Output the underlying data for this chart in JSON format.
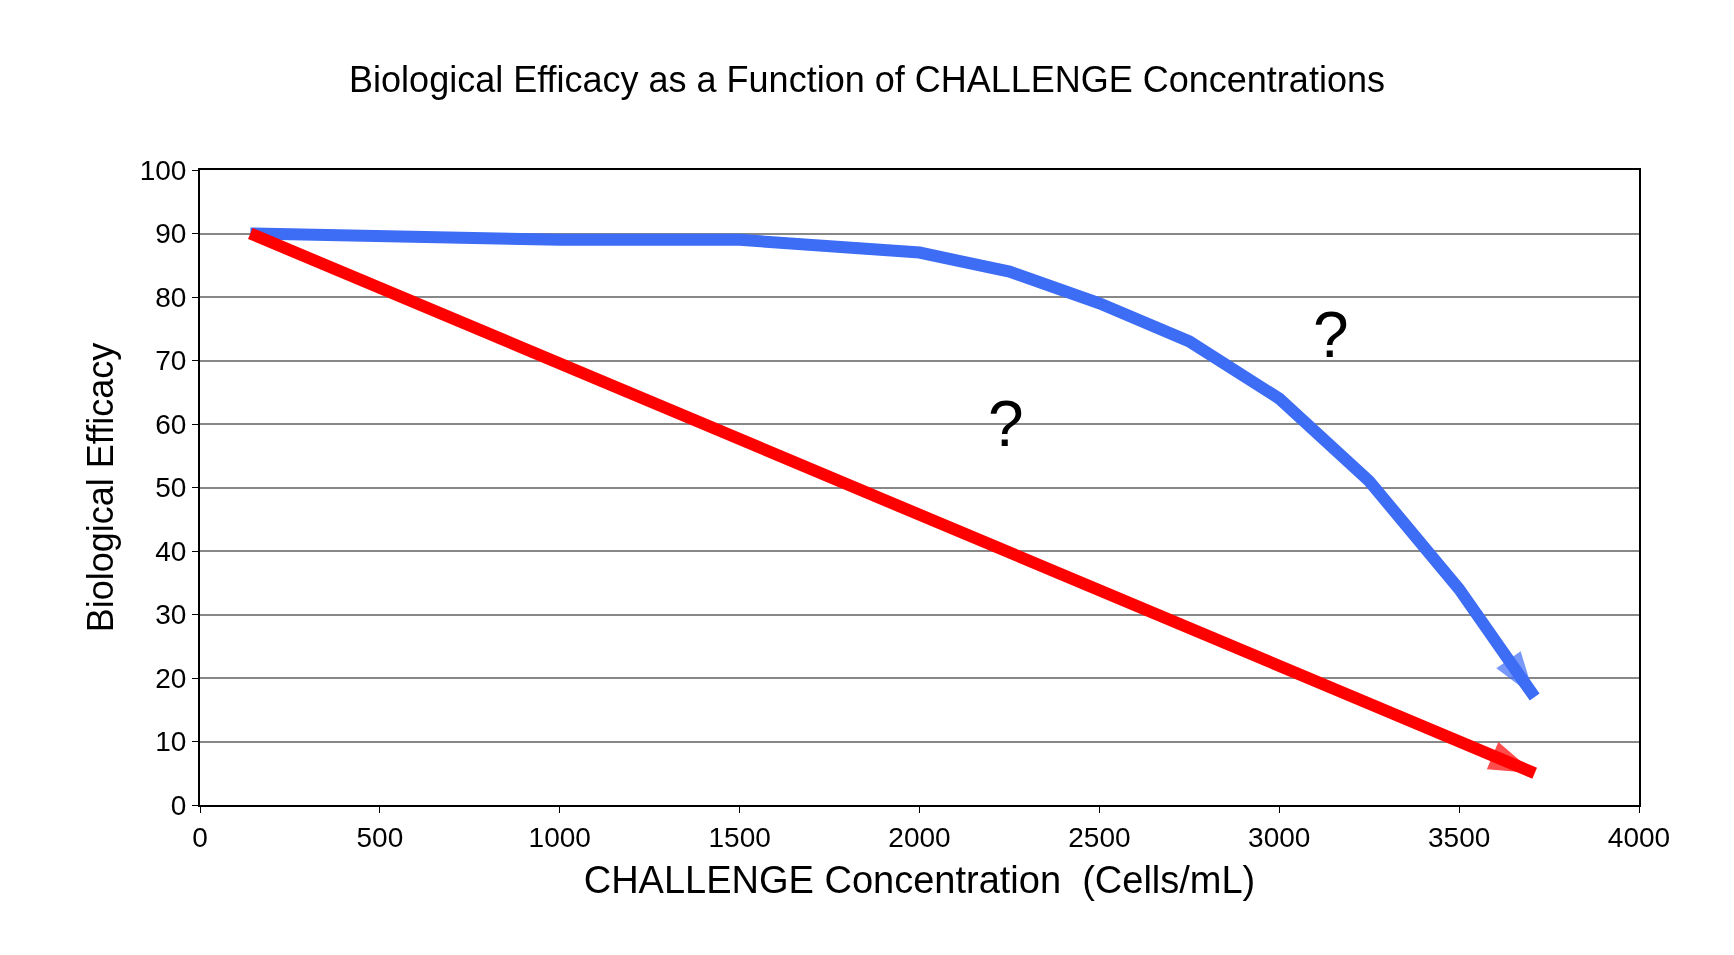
{
  "chart_data": {
    "type": "line",
    "title": "Biological Efficacy as a Function of CHALLENGE Concentrations",
    "xlabel": "CHALLENGE Concentration  (Cells/mL)",
    "ylabel": "Biological Efficacy",
    "series": [
      {
        "color": "#3d6cf5",
        "x": [
          140,
          1000,
          1500,
          2000,
          2250,
          2500,
          2750,
          3000,
          3250,
          3500,
          3710
        ],
        "values": [
          90,
          89,
          89,
          87,
          84,
          79,
          73,
          64,
          51,
          34,
          17
        ]
      },
      {
        "color": "#ff0000",
        "x": [
          140,
          3710
        ],
        "values": [
          90,
          5
        ]
      }
    ],
    "annotations": [
      "?",
      "?"
    ],
    "xlim": [
      0,
      4000
    ],
    "xticks": [
      0,
      500,
      1000,
      1500,
      2000,
      2500,
      3000,
      3500,
      4000
    ],
    "ylim": [
      0,
      100
    ],
    "yticks": [
      0,
      10,
      20,
      30,
      40,
      50,
      60,
      70,
      80,
      90,
      100
    ],
    "grid": "y",
    "line_style": "solid"
  }
}
